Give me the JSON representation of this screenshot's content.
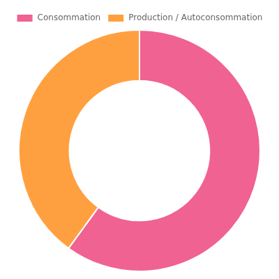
{
  "chart_data": {
    "type": "donut",
    "categories": [
      "Consommation",
      "Production / Autoconsommation"
    ],
    "values": [
      60,
      40
    ],
    "colors": [
      "#F06292",
      "#FFA040"
    ],
    "legend": "top"
  }
}
